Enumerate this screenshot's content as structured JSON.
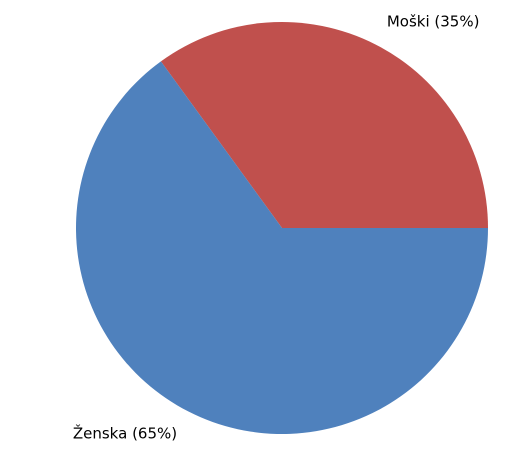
{
  "chart_data": {
    "type": "pie",
    "values": [
      35,
      65
    ],
    "value_labels": [
      "Moški (35%)",
      "Ženska (65%)"
    ],
    "colors": [
      "#c0504d",
      "#4f81bd"
    ]
  }
}
